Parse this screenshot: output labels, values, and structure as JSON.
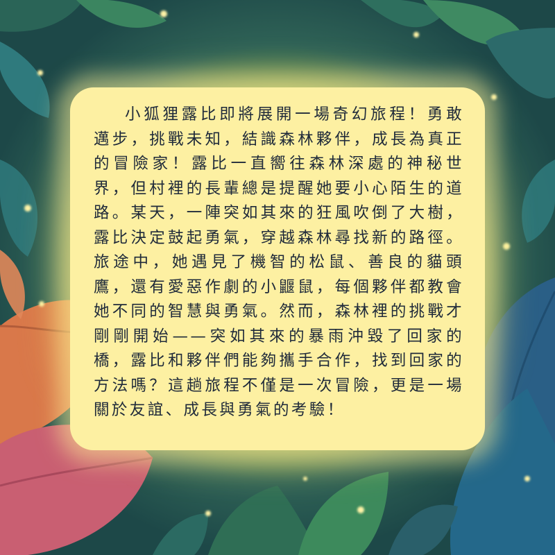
{
  "story": {
    "text": "小狐狸露比即將展開一場奇幻旅程！勇敢邁步，挑戰未知，結識森林夥伴，成長為真正的冒險家！露比一直嚮往森林深處的神秘世界，但村裡的長輩總是提醒她要小心陌生的道路。某天，一陣突如其來的狂風吹倒了大樹，露比決定鼓起勇氣，穿越森林尋找新的路徑。旅途中，她遇見了機智的松鼠、善良的貓頭鷹，還有愛惡作劇的小鼴鼠，每個夥伴都教會她不同的智慧與勇氣。然而，森林裡的挑戰才剛剛開始——突如其來的暴雨沖毀了回家的橋，露比和夥伴們能夠攜手合作，找到回家的方法嗎？這趟旅程不僅是一次冒險，更是一場關於友誼、成長與勇氣的考驗！"
  },
  "colors": {
    "card_background": "#fdf0a2",
    "text": "#1f2a3a",
    "forest_dark": "#1d4848",
    "glow": "#e8dc6a"
  }
}
